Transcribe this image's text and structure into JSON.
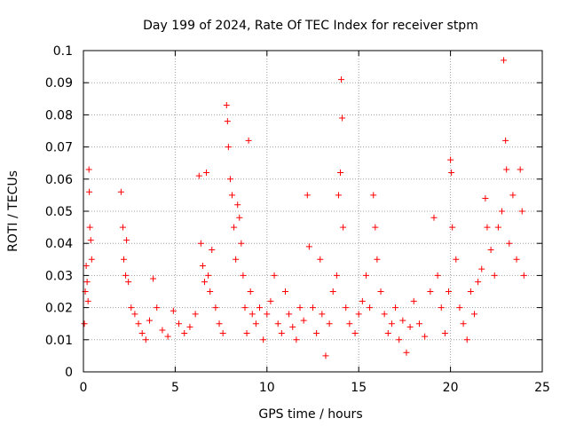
{
  "chart_data": {
    "type": "scatter",
    "title": "Day 199 of 2024, Rate Of TEC Index for receiver stpm",
    "xlabel": "GPS time / hours",
    "ylabel": "ROTI / TECUs",
    "xlim": [
      0,
      25
    ],
    "ylim": [
      0,
      0.1
    ],
    "xticks": [
      0,
      5,
      10,
      15,
      20,
      25
    ],
    "xtick_labels": [
      "0",
      "5",
      "10",
      "15",
      "20",
      "25"
    ],
    "yticks": [
      0,
      0.01,
      0.02,
      0.03,
      0.04,
      0.05,
      0.06,
      0.07,
      0.08,
      0.09,
      0.1
    ],
    "ytick_labels": [
      "0",
      "0.01",
      "0.02",
      "0.03",
      "0.04",
      "0.05",
      "0.06",
      "0.07",
      "0.08",
      "0.09",
      "0.1"
    ],
    "grid": true,
    "marker": "+",
    "color": "#ff0000",
    "points": [
      [
        0.05,
        0.015
      ],
      [
        0.1,
        0.025
      ],
      [
        0.15,
        0.033
      ],
      [
        0.2,
        0.028
      ],
      [
        0.25,
        0.022
      ],
      [
        0.3,
        0.063
      ],
      [
        0.32,
        0.056
      ],
      [
        0.35,
        0.045
      ],
      [
        0.4,
        0.041
      ],
      [
        0.45,
        0.035
      ],
      [
        2.05,
        0.056
      ],
      [
        2.15,
        0.045
      ],
      [
        2.2,
        0.035
      ],
      [
        2.3,
        0.03
      ],
      [
        2.35,
        0.041
      ],
      [
        2.45,
        0.028
      ],
      [
        2.6,
        0.02
      ],
      [
        2.8,
        0.018
      ],
      [
        3.0,
        0.015
      ],
      [
        3.2,
        0.012
      ],
      [
        3.4,
        0.01
      ],
      [
        3.6,
        0.016
      ],
      [
        3.8,
        0.029
      ],
      [
        4.0,
        0.02
      ],
      [
        4.3,
        0.013
      ],
      [
        4.6,
        0.011
      ],
      [
        4.9,
        0.019
      ],
      [
        5.2,
        0.015
      ],
      [
        5.5,
        0.012
      ],
      [
        5.8,
        0.014
      ],
      [
        6.1,
        0.018
      ],
      [
        6.3,
        0.061
      ],
      [
        6.4,
        0.04
      ],
      [
        6.5,
        0.033
      ],
      [
        6.6,
        0.028
      ],
      [
        6.7,
        0.062
      ],
      [
        6.8,
        0.03
      ],
      [
        6.9,
        0.025
      ],
      [
        7.0,
        0.038
      ],
      [
        7.2,
        0.02
      ],
      [
        7.4,
        0.015
      ],
      [
        7.6,
        0.012
      ],
      [
        7.8,
        0.083
      ],
      [
        7.85,
        0.078
      ],
      [
        7.9,
        0.07
      ],
      [
        8.0,
        0.06
      ],
      [
        8.1,
        0.055
      ],
      [
        8.2,
        0.045
      ],
      [
        8.3,
        0.035
      ],
      [
        8.4,
        0.052
      ],
      [
        8.5,
        0.048
      ],
      [
        8.6,
        0.04
      ],
      [
        8.7,
        0.03
      ],
      [
        8.8,
        0.02
      ],
      [
        8.9,
        0.012
      ],
      [
        9.0,
        0.072
      ],
      [
        9.1,
        0.025
      ],
      [
        9.2,
        0.018
      ],
      [
        9.4,
        0.015
      ],
      [
        9.6,
        0.02
      ],
      [
        9.8,
        0.01
      ],
      [
        10.0,
        0.018
      ],
      [
        10.2,
        0.022
      ],
      [
        10.4,
        0.03
      ],
      [
        10.6,
        0.015
      ],
      [
        10.8,
        0.012
      ],
      [
        11.0,
        0.025
      ],
      [
        11.2,
        0.018
      ],
      [
        11.4,
        0.014
      ],
      [
        11.6,
        0.01
      ],
      [
        11.8,
        0.02
      ],
      [
        12.0,
        0.016
      ],
      [
        12.2,
        0.055
      ],
      [
        12.3,
        0.039
      ],
      [
        12.5,
        0.02
      ],
      [
        12.7,
        0.012
      ],
      [
        12.9,
        0.035
      ],
      [
        13.0,
        0.018
      ],
      [
        13.2,
        0.005
      ],
      [
        13.4,
        0.015
      ],
      [
        13.6,
        0.025
      ],
      [
        13.8,
        0.03
      ],
      [
        13.9,
        0.055
      ],
      [
        14.0,
        0.062
      ],
      [
        14.05,
        0.091
      ],
      [
        14.1,
        0.079
      ],
      [
        14.15,
        0.045
      ],
      [
        14.3,
        0.02
      ],
      [
        14.5,
        0.015
      ],
      [
        14.8,
        0.012
      ],
      [
        15.0,
        0.018
      ],
      [
        15.2,
        0.022
      ],
      [
        15.4,
        0.03
      ],
      [
        15.6,
        0.02
      ],
      [
        15.8,
        0.055
      ],
      [
        15.9,
        0.045
      ],
      [
        16.0,
        0.035
      ],
      [
        16.2,
        0.025
      ],
      [
        16.4,
        0.018
      ],
      [
        16.6,
        0.012
      ],
      [
        16.8,
        0.015
      ],
      [
        17.0,
        0.02
      ],
      [
        17.2,
        0.01
      ],
      [
        17.4,
        0.016
      ],
      [
        17.6,
        0.006
      ],
      [
        17.8,
        0.014
      ],
      [
        18.0,
        0.022
      ],
      [
        18.3,
        0.015
      ],
      [
        18.6,
        0.011
      ],
      [
        18.9,
        0.025
      ],
      [
        19.1,
        0.048
      ],
      [
        19.3,
        0.03
      ],
      [
        19.5,
        0.02
      ],
      [
        19.7,
        0.012
      ],
      [
        19.9,
        0.025
      ],
      [
        20.0,
        0.066
      ],
      [
        20.05,
        0.062
      ],
      [
        20.1,
        0.045
      ],
      [
        20.3,
        0.035
      ],
      [
        20.5,
        0.02
      ],
      [
        20.7,
        0.015
      ],
      [
        20.9,
        0.01
      ],
      [
        21.1,
        0.025
      ],
      [
        21.3,
        0.018
      ],
      [
        21.5,
        0.028
      ],
      [
        21.7,
        0.032
      ],
      [
        21.9,
        0.054
      ],
      [
        22.0,
        0.045
      ],
      [
        22.2,
        0.038
      ],
      [
        22.4,
        0.03
      ],
      [
        22.6,
        0.045
      ],
      [
        22.8,
        0.05
      ],
      [
        22.9,
        0.097
      ],
      [
        23.0,
        0.072
      ],
      [
        23.05,
        0.063
      ],
      [
        23.2,
        0.04
      ],
      [
        23.4,
        0.055
      ],
      [
        23.6,
        0.035
      ],
      [
        23.8,
        0.063
      ],
      [
        23.9,
        0.05
      ],
      [
        24.0,
        0.03
      ]
    ]
  }
}
